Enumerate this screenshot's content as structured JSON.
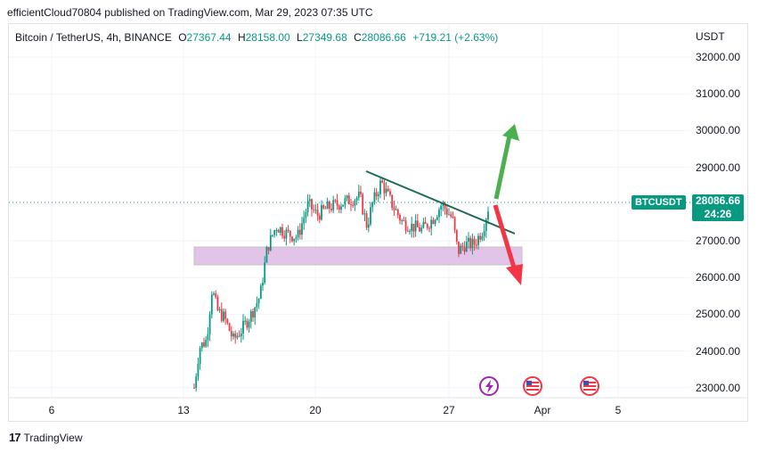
{
  "header": {
    "text": "efficientCloud70804 published on TradingView.com, Mar 29, 2023 07:35 UTC"
  },
  "legend": {
    "symbol": "Bitcoin / TetherUS, 4h, BINANCE",
    "o_label": "O",
    "o_value": "27367.44",
    "h_label": "H",
    "h_value": "28158.00",
    "l_label": "L",
    "l_value": "27349.68",
    "c_label": "C",
    "c_value": "28086.66",
    "change": "+719.21 (+2.63%)"
  },
  "currency": "USDT",
  "price_tag": {
    "ticker": "BTCUSDT",
    "price": "28086.66",
    "countdown": "24:26"
  },
  "footer": {
    "brand": "TradingView"
  },
  "colors": {
    "up": "#089981",
    "down": "#f23645",
    "zone": "#e1bee7",
    "trendline": "#1b6b55",
    "arrow_up": "#4caf50",
    "arrow_down": "#f23645"
  },
  "chart_data": {
    "type": "candlestick",
    "title": "Bitcoin / TetherUS, 4h, BINANCE",
    "y_ticks": [
      "32000.00",
      "31000.00",
      "30000.00",
      "29000.00",
      "28000.00",
      "27000.00",
      "26000.00",
      "25000.00",
      "24000.00",
      "23000.00"
    ],
    "x_ticks": [
      "6",
      "13",
      "20",
      "27",
      "Apr",
      "5"
    ],
    "y_range": [
      22950,
      32450
    ],
    "support_zone": [
      26300,
      26800
    ],
    "trendline": {
      "start": [
        "Mar 22",
        28900
      ],
      "end": [
        "Mar 29",
        27200
      ]
    },
    "last_price": 28086.66,
    "annotations": [
      "bullish breakout arrow",
      "bearish breakdown arrow"
    ],
    "events": [
      "lightning-icon",
      "us-flag-icon",
      "us-flag-icon"
    ]
  }
}
